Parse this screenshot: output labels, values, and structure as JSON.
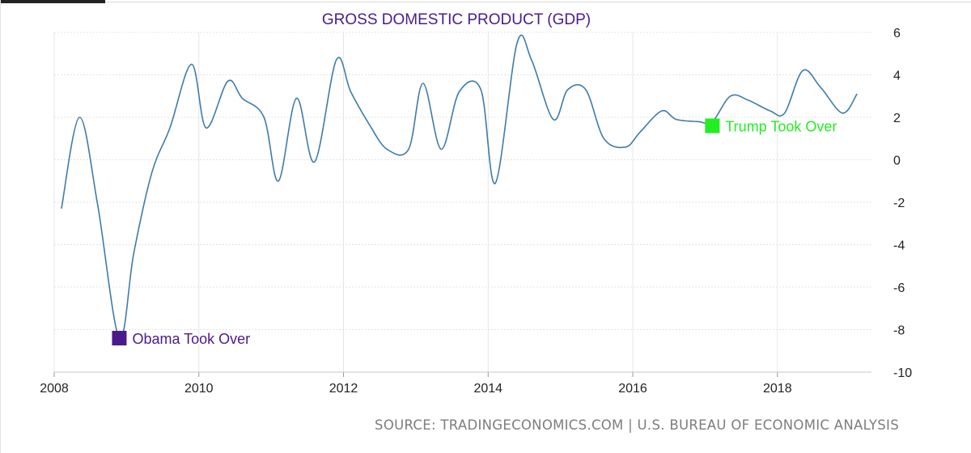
{
  "chart_data": {
    "type": "line",
    "title": "GROSS DOMESTIC PRODUCT (GDP)",
    "title_color": "#4b1a8c",
    "xlabel": "",
    "ylabel": "",
    "xlim": [
      2008,
      2019.3
    ],
    "ylim": [
      -10,
      6
    ],
    "x_ticks": [
      "2008",
      "2010",
      "2012",
      "2014",
      "2016",
      "2018"
    ],
    "y_ticks": [
      "6",
      "4",
      "2",
      "0",
      "-2",
      "-4",
      "-6",
      "-8",
      "-10"
    ],
    "grid": true,
    "line_color": "#3d7bab",
    "series": [
      {
        "x": [
          2008.1,
          2008.35,
          2008.6,
          2008.9,
          2009.1,
          2009.35,
          2009.6,
          2009.9,
          2010.1,
          2010.4,
          2010.6,
          2010.9,
          2011.1,
          2011.35,
          2011.6,
          2011.9,
          2012.1,
          2012.35,
          2012.6,
          2012.9,
          2013.1,
          2013.35,
          2013.6,
          2013.9,
          2014.1,
          2014.4,
          2014.6,
          2014.9,
          2015.1,
          2015.35,
          2015.6,
          2015.9,
          2016.1,
          2016.4,
          2016.6,
          2016.9,
          2017.1,
          2017.35,
          2017.6,
          2017.9,
          2018.1,
          2018.35,
          2018.6,
          2018.9,
          2019.1
        ],
        "y": [
          -2.3,
          2.0,
          -2.1,
          -8.4,
          -4.4,
          -0.6,
          1.5,
          4.5,
          1.5,
          3.7,
          2.9,
          2.0,
          -1.0,
          2.9,
          -0.1,
          4.7,
          3.2,
          1.7,
          0.5,
          0.5,
          3.6,
          0.5,
          3.2,
          3.3,
          -1.1,
          5.5,
          4.7,
          1.9,
          3.3,
          3.3,
          1.0,
          0.6,
          1.3,
          2.3,
          1.9,
          1.8,
          1.8,
          3.0,
          2.8,
          2.3,
          2.2,
          4.2,
          3.4,
          2.2,
          3.1
        ]
      }
    ],
    "annotations": [
      {
        "x": 2008.9,
        "y": -8.4,
        "text": "Obama Took Over",
        "color": "#4b1a8c"
      },
      {
        "x": 2017.1,
        "y": 1.6,
        "text": "Trump Took Over",
        "color": "#22ee22"
      }
    ]
  },
  "footer": {
    "source": "SOURCE: TRADINGECONOMICS.COM | U.S. BUREAU OF ECONOMIC ANALYSIS"
  }
}
